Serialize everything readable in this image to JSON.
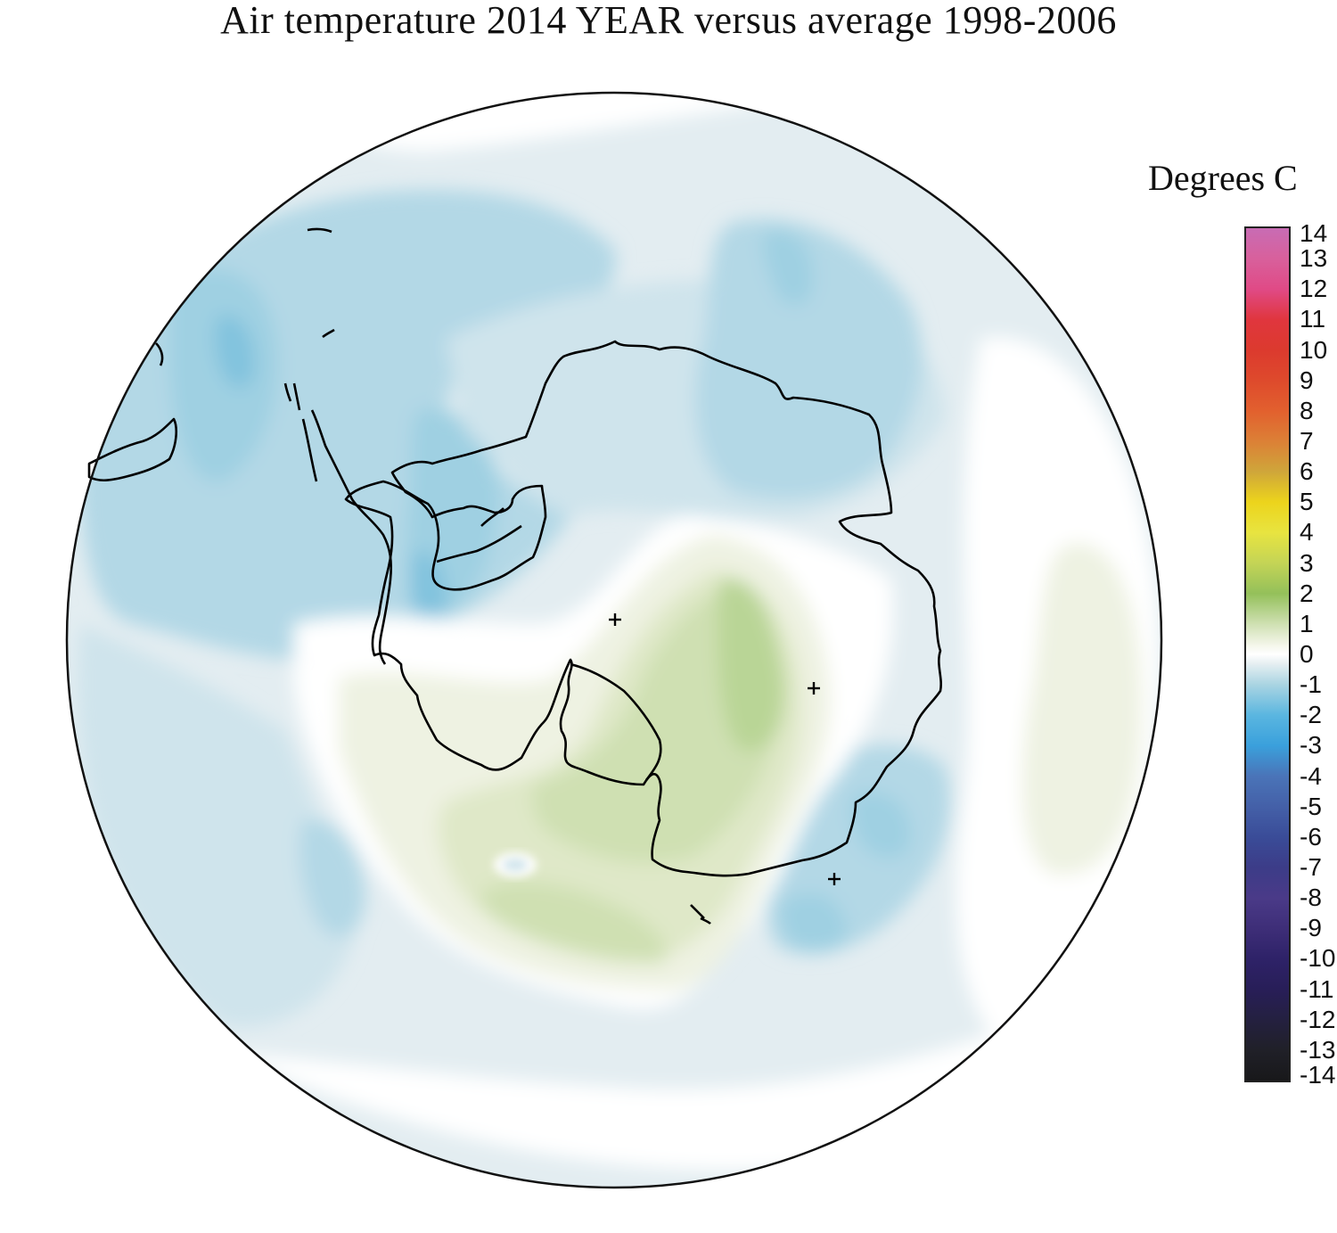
{
  "title": "Air temperature 2014 YEAR versus average 1998-2006",
  "legend": {
    "title": "Degrees C",
    "min": -14,
    "max": 14,
    "ticks": [
      "14",
      "13",
      "12",
      "11",
      "10",
      "9",
      "8",
      "7",
      "6",
      "5",
      "4",
      "3",
      "2",
      "1",
      "0",
      "-1",
      "-2",
      "-3",
      "-4",
      "-5",
      "-6",
      "-7",
      "-8",
      "-9",
      "-10",
      "-11",
      "-12",
      "-13",
      "-14"
    ],
    "stops": [
      {
        "v": 14,
        "c": "#c86cb4"
      },
      {
        "v": 13,
        "c": "#d8609c"
      },
      {
        "v": 12,
        "c": "#e04a86"
      },
      {
        "v": 11,
        "c": "#e0363e"
      },
      {
        "v": 10,
        "c": "#dc3a2e"
      },
      {
        "v": 9,
        "c": "#de4a2c"
      },
      {
        "v": 8,
        "c": "#e2602e"
      },
      {
        "v": 7,
        "c": "#dc8036"
      },
      {
        "v": 6,
        "c": "#cfa63a"
      },
      {
        "v": 5,
        "c": "#ecd41c"
      },
      {
        "v": 4,
        "c": "#e8e440"
      },
      {
        "v": 3,
        "c": "#c4d456"
      },
      {
        "v": 2,
        "c": "#94c05a"
      },
      {
        "v": 1,
        "c": "#cfe0b2"
      },
      {
        "v": 0.3,
        "c": "#f4f6ea"
      },
      {
        "v": 0,
        "c": "#ffffff"
      },
      {
        "v": -0.3,
        "c": "#e6eff2"
      },
      {
        "v": -1,
        "c": "#a9d4e2"
      },
      {
        "v": -2,
        "c": "#5ab6e0"
      },
      {
        "v": -3,
        "c": "#3aa0dc"
      },
      {
        "v": -4,
        "c": "#4a74b8"
      },
      {
        "v": -5,
        "c": "#4460a8"
      },
      {
        "v": -6,
        "c": "#3a4c98"
      },
      {
        "v": -7,
        "c": "#3c3c88"
      },
      {
        "v": -8,
        "c": "#4a3a88"
      },
      {
        "v": -9,
        "c": "#3e2e78"
      },
      {
        "v": -10,
        "c": "#2e2268"
      },
      {
        "v": -11,
        "c": "#281e58"
      },
      {
        "v": -12,
        "c": "#242040"
      },
      {
        "v": -13,
        "c": "#202028"
      },
      {
        "v": -14,
        "c": "#18181a"
      }
    ]
  },
  "map": {
    "projection": "south polar stereographic",
    "colors": {
      "cool_light": "#e3edf1",
      "cool_mid": "#cfe4ec",
      "cool": "#b3d8e6",
      "cool_strong": "#9fd0e2",
      "cool_stronger": "#82c3de",
      "neutral": "#ffffff",
      "warm_light": "#eef2e2",
      "warm_mid": "#dfe8c8",
      "warm": "#cfe0b2",
      "warm_strong": "#b9d596",
      "coast": "#000000"
    },
    "features": [
      "antarctica-coastline",
      "south-america-tip",
      "ross-ice-shelf",
      "ronne-filchner-ice-shelf",
      "marker-crosses"
    ]
  }
}
